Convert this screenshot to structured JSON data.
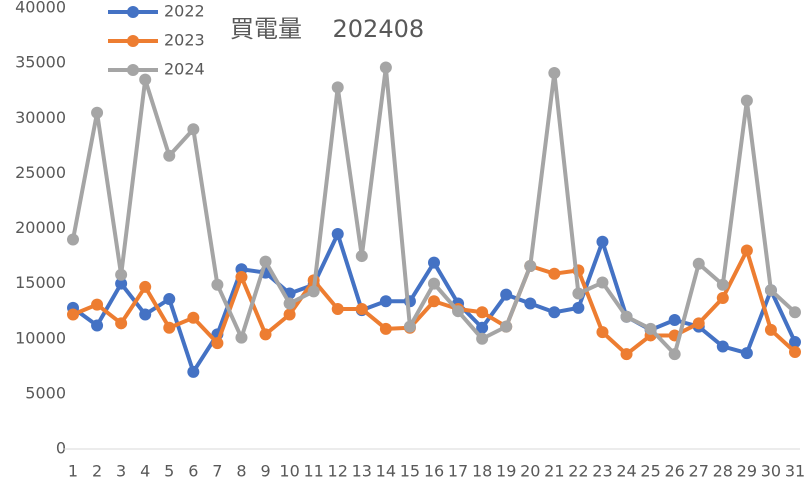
{
  "chart_data": {
    "type": "line",
    "title": "買電量    202408",
    "categories": [
      "1",
      "2",
      "3",
      "4",
      "5",
      "6",
      "7",
      "8",
      "9",
      "10",
      "11",
      "12",
      "13",
      "14",
      "15",
      "16",
      "17",
      "18",
      "19",
      "20",
      "21",
      "22",
      "23",
      "24",
      "25",
      "26",
      "27",
      "28",
      "29",
      "30",
      "31"
    ],
    "series": [
      {
        "name": "2022",
        "color": "#4472c4",
        "values": [
          12800,
          11200,
          15000,
          12200,
          13600,
          7000,
          10400,
          16300,
          16000,
          14100,
          14900,
          19500,
          12600,
          13400,
          13400,
          16900,
          13200,
          11000,
          14000,
          13200,
          12400,
          12800,
          18800,
          12000,
          10800,
          11700,
          11100,
          9300,
          8700,
          14400,
          9700
        ]
      },
      {
        "name": "2023",
        "color": "#ed7d31",
        "values": [
          12200,
          13100,
          11400,
          14700,
          11000,
          11900,
          9600,
          15600,
          10400,
          12200,
          15300,
          12700,
          12700,
          10900,
          11000,
          13400,
          12700,
          12400,
          11100,
          16600,
          15900,
          16200,
          10600,
          8600,
          10300,
          10300,
          11400,
          13700,
          18000,
          10800,
          8800
        ]
      },
      {
        "name": "2024",
        "color": "#a5a5a5",
        "values": [
          19000,
          30500,
          15800,
          33500,
          26600,
          29000,
          14900,
          10100,
          17000,
          13200,
          14300,
          32800,
          17500,
          34600,
          11100,
          15000,
          12500,
          10000,
          11100,
          16600,
          34100,
          14100,
          15100,
          12000,
          10900,
          8600,
          16800,
          14900,
          31600,
          14400,
          12400
        ]
      }
    ],
    "ylim": [
      0,
      40000
    ],
    "yticks": [
      0,
      5000,
      10000,
      15000,
      20000,
      25000,
      30000,
      35000,
      40000
    ],
    "grid": false,
    "legend": "top-left"
  }
}
